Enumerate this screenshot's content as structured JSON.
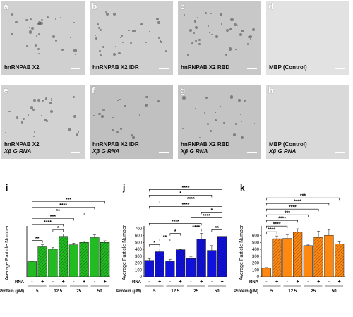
{
  "panels": [
    {
      "letter": "a",
      "line1": "hnRNPAB X2",
      "line2": ""
    },
    {
      "letter": "b",
      "line1": "hnRNPAB X2 IDR",
      "line2": ""
    },
    {
      "letter": "c",
      "line1": "hnRNPAB X2 RBD",
      "line2": ""
    },
    {
      "letter": "d",
      "line1": "MBP (Control)",
      "line2": ""
    },
    {
      "letter": "e",
      "line1": "hnRNPAB X2",
      "line2": "Xβ G RNA"
    },
    {
      "letter": "f",
      "line1": "hnRNPAB X2 IDR",
      "line2": "Xβ G RNA"
    },
    {
      "letter": "g",
      "line1": "hnRNPAB X2 RBD",
      "line2": "Xβ G RNA"
    },
    {
      "letter": "h",
      "line1": "MBP (Control)",
      "line2": "Xβ G RNA"
    }
  ],
  "chart_data": [
    {
      "type": "bar",
      "letter": "i",
      "ylabel": "Average Particle Number",
      "color": "#22bb22",
      "ylim": [
        0,
        600
      ],
      "yticks": [],
      "x_row_rna_label": "RNA",
      "x_row_protein_label": "Protein (μM)",
      "rna": [
        "-",
        "+",
        "-",
        "+",
        "-",
        "+",
        "-",
        "+"
      ],
      "protein_groups": [
        "5",
        "12.5",
        "25",
        "50"
      ],
      "values": [
        190,
        375,
        345,
        505,
        400,
        430,
        490,
        430
      ],
      "errors": [
        5,
        25,
        20,
        30,
        20,
        15,
        35,
        20
      ],
      "significance": [
        {
          "a": 0,
          "b": 1,
          "label": "**"
        },
        {
          "a": 2,
          "b": 3,
          "label": "*"
        },
        {
          "a": 0,
          "b": 3,
          "label": "****"
        },
        {
          "a": 0,
          "b": 4,
          "label": "***"
        },
        {
          "a": 0,
          "b": 5,
          "label": "**"
        },
        {
          "a": 0,
          "b": 6,
          "label": "****"
        },
        {
          "a": 0,
          "b": 7,
          "label": "***"
        }
      ]
    },
    {
      "type": "bar",
      "letter": "j",
      "ylabel": "Average Particle Number",
      "color": "#1111dd",
      "ylim": [
        0,
        700
      ],
      "yticks": [
        0,
        100,
        200,
        300,
        400,
        500,
        600,
        700
      ],
      "x_row_rna_label": "RNA",
      "x_row_protein_label": "Protein (μM)",
      "rna": [
        "-",
        "+",
        "-",
        "+",
        "-",
        "+",
        "-",
        "+"
      ],
      "protein_groups": [
        "5",
        "12.5",
        "25",
        "50"
      ],
      "values": [
        240,
        365,
        225,
        395,
        265,
        545,
        385,
        590
      ],
      "errors": [
        25,
        40,
        30,
        5,
        25,
        90,
        70,
        35
      ],
      "significance": [
        {
          "a": 0,
          "b": 1,
          "label": "*"
        },
        {
          "a": 1,
          "b": 2,
          "label": "**"
        },
        {
          "a": 2,
          "b": 3,
          "label": "*"
        },
        {
          "a": 4,
          "b": 5,
          "label": "****"
        },
        {
          "a": 6,
          "b": 7,
          "label": "**"
        },
        {
          "a": 0,
          "b": 5,
          "label": "****"
        },
        {
          "a": 4,
          "b": 7,
          "label": "****"
        },
        {
          "a": 5,
          "b": 7,
          "label": "*"
        },
        {
          "a": 0,
          "b": 7,
          "label": "****"
        },
        {
          "a": 1,
          "b": 7,
          "label": "****"
        },
        {
          "a": 0,
          "b": 6,
          "label": "*"
        },
        {
          "a": 0,
          "b": 7,
          "label": "****"
        }
      ]
    },
    {
      "type": "bar",
      "letter": "k",
      "ylabel": "Average Particle Number",
      "color": "#ff8811",
      "ylim": [
        0,
        700
      ],
      "yticks": [
        0,
        100,
        200,
        300,
        400,
        500,
        600
      ],
      "x_row_rna_label": "RNA",
      "x_row_protein_label": "Protein (μM)",
      "rna": [
        "-",
        "+",
        "-",
        "+",
        "-",
        "+",
        "-",
        "+"
      ],
      "protein_groups": [
        "5",
        "12.5",
        "25",
        "50"
      ],
      "values": [
        125,
        555,
        560,
        650,
        455,
        575,
        605,
        480
      ],
      "errors": [
        10,
        40,
        55,
        50,
        10,
        90,
        80,
        30
      ],
      "significance": [
        {
          "a": 0,
          "b": 1,
          "label": "****"
        },
        {
          "a": 0,
          "b": 2,
          "label": "****"
        },
        {
          "a": 0,
          "b": 3,
          "label": "****"
        },
        {
          "a": 0,
          "b": 4,
          "label": "***"
        },
        {
          "a": 0,
          "b": 5,
          "label": "****"
        },
        {
          "a": 0,
          "b": 6,
          "label": "****"
        },
        {
          "a": 0,
          "b": 7,
          "label": "***"
        }
      ]
    }
  ]
}
